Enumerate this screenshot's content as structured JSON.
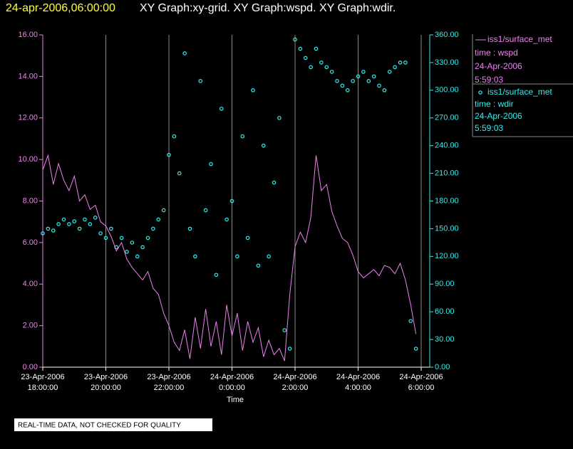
{
  "chart_data": {
    "type": "scatter",
    "title_time": "24-apr-2006,06:00:00",
    "title": "XY Graph:xy-grid.  XY Graph:wspd.  XY Graph:wdir.",
    "xlabel": "Time",
    "footer": "REAL-TIME DATA, NOT CHECKED FOR QUALITY",
    "grid": true,
    "xlim": [
      "2006-04-23T18:00:00",
      "2006-04-24T06:00:00"
    ],
    "xticks": [
      {
        "value": "2006-04-23T18:00:00",
        "label": [
          "23-Apr-2006",
          "18:00:00"
        ]
      },
      {
        "value": "2006-04-23T20:00:00",
        "label": [
          "23-Apr-2006",
          "20:00:00"
        ]
      },
      {
        "value": "2006-04-23T22:00:00",
        "label": [
          "23-Apr-2006",
          "22:00:00"
        ]
      },
      {
        "value": "2006-04-24T00:00:00",
        "label": [
          "24-Apr-2006",
          "0:00:00"
        ]
      },
      {
        "value": "2006-04-24T02:00:00",
        "label": [
          "24-Apr-2006",
          "2:00:00"
        ]
      },
      {
        "value": "2006-04-24T04:00:00",
        "label": [
          "24-Apr-2006",
          "4:00:00"
        ]
      },
      {
        "value": "2006-04-24T06:00:00",
        "label": [
          "24-Apr-2006",
          "6:00:00"
        ]
      }
    ],
    "ylim": [
      0,
      16
    ],
    "yticks": [
      {
        "value": 0,
        "label": "0.00"
      },
      {
        "value": 2,
        "label": "2.00"
      },
      {
        "value": 4,
        "label": "4.00"
      },
      {
        "value": 6,
        "label": "6.00"
      },
      {
        "value": 8,
        "label": "8.00"
      },
      {
        "value": 10,
        "label": "10.00"
      },
      {
        "value": 12,
        "label": "12.00"
      },
      {
        "value": 14,
        "label": "14.00"
      },
      {
        "value": 16,
        "label": "16.00"
      }
    ],
    "y2lim": [
      0,
      360
    ],
    "y2ticks": [
      {
        "value": 0,
        "label": "0.00"
      },
      {
        "value": 30,
        "label": "30.00"
      },
      {
        "value": 60,
        "label": "60.00"
      },
      {
        "value": 90,
        "label": "90.00"
      },
      {
        "value": 120,
        "label": "120.00"
      },
      {
        "value": 150,
        "label": "150.00"
      },
      {
        "value": 180,
        "label": "180.00"
      },
      {
        "value": 210,
        "label": "210.00"
      },
      {
        "value": 240,
        "label": "240.00"
      },
      {
        "value": 270,
        "label": "270.00"
      },
      {
        "value": 300,
        "label": "300.00"
      },
      {
        "value": 330,
        "label": "330.00"
      },
      {
        "value": 360,
        "label": "360.00"
      }
    ],
    "x": [
      "2006-04-23T18:00:00",
      "2006-04-23T18:10:00",
      "2006-04-23T18:20:00",
      "2006-04-23T18:30:00",
      "2006-04-23T18:40:00",
      "2006-04-23T18:50:00",
      "2006-04-23T19:00:00",
      "2006-04-23T19:10:00",
      "2006-04-23T19:20:00",
      "2006-04-23T19:30:00",
      "2006-04-23T19:40:00",
      "2006-04-23T19:50:00",
      "2006-04-23T20:00:00",
      "2006-04-23T20:10:00",
      "2006-04-23T20:20:00",
      "2006-04-23T20:30:00",
      "2006-04-23T20:40:00",
      "2006-04-23T20:50:00",
      "2006-04-23T21:00:00",
      "2006-04-23T21:10:00",
      "2006-04-23T21:20:00",
      "2006-04-23T21:30:00",
      "2006-04-23T21:40:00",
      "2006-04-23T21:50:00",
      "2006-04-23T22:00:00",
      "2006-04-23T22:10:00",
      "2006-04-23T22:20:00",
      "2006-04-23T22:30:00",
      "2006-04-23T22:40:00",
      "2006-04-23T22:50:00",
      "2006-04-23T23:00:00",
      "2006-04-23T23:10:00",
      "2006-04-23T23:20:00",
      "2006-04-23T23:30:00",
      "2006-04-23T23:40:00",
      "2006-04-23T23:50:00",
      "2006-04-24T00:00:00",
      "2006-04-24T00:10:00",
      "2006-04-24T00:20:00",
      "2006-04-24T00:30:00",
      "2006-04-24T00:40:00",
      "2006-04-24T00:50:00",
      "2006-04-24T01:00:00",
      "2006-04-24T01:10:00",
      "2006-04-24T01:20:00",
      "2006-04-24T01:30:00",
      "2006-04-24T01:40:00",
      "2006-04-24T01:50:00",
      "2006-04-24T02:00:00",
      "2006-04-24T02:10:00",
      "2006-04-24T02:20:00",
      "2006-04-24T02:30:00",
      "2006-04-24T02:40:00",
      "2006-04-24T02:50:00",
      "2006-04-24T03:00:00",
      "2006-04-24T03:10:00",
      "2006-04-24T03:20:00",
      "2006-04-24T03:30:00",
      "2006-04-24T03:40:00",
      "2006-04-24T03:50:00",
      "2006-04-24T04:00:00",
      "2006-04-24T04:10:00",
      "2006-04-24T04:20:00",
      "2006-04-24T04:30:00",
      "2006-04-24T04:40:00",
      "2006-04-24T04:50:00",
      "2006-04-24T05:00:00",
      "2006-04-24T05:10:00",
      "2006-04-24T05:20:00",
      "2006-04-24T05:30:00",
      "2006-04-24T05:40:00",
      "2006-04-24T05:50:00"
    ],
    "series": [
      {
        "name": "iss1/surface_met",
        "legend_lines": [
          "time : wspd",
          "24-Apr-2006",
          "5:59:03"
        ],
        "color": "#ee82ee",
        "kind": "line",
        "values": [
          9.5,
          10.2,
          8.8,
          9.8,
          9.0,
          8.5,
          9.2,
          8.0,
          8.3,
          7.6,
          7.8,
          7.0,
          6.8,
          6.3,
          5.6,
          6.0,
          5.2,
          4.8,
          4.5,
          4.2,
          4.6,
          3.8,
          3.5,
          2.6,
          2.0,
          1.2,
          0.8,
          1.8,
          0.4,
          2.4,
          0.9,
          2.8,
          1.0,
          2.2,
          0.6,
          3.0,
          1.5,
          2.6,
          0.8,
          2.2,
          1.2,
          1.9,
          0.5,
          1.3,
          0.6,
          0.9,
          0.3,
          3.5,
          5.8,
          6.5,
          6.0,
          7.2,
          10.2,
          8.5,
          8.8,
          7.5,
          6.8,
          6.2,
          6.0,
          5.4,
          4.6,
          4.3,
          4.5,
          4.7,
          4.4,
          4.9,
          4.8,
          4.5,
          5.0,
          4.2,
          3.0,
          1.6
        ]
      },
      {
        "name": "iss1/surface_met",
        "legend_lines": [
          "time : wdir",
          "24-Apr-2006",
          "5:59:03"
        ],
        "color": "#33eeee",
        "kind": "points",
        "axis": "y2",
        "values": [
          145,
          150,
          148,
          155,
          160,
          155,
          158,
          150,
          160,
          155,
          162,
          145,
          140,
          150,
          130,
          140,
          125,
          135,
          120,
          130,
          140,
          150,
          160,
          170,
          230,
          250,
          210,
          340,
          150,
          120,
          310,
          170,
          220,
          100,
          280,
          160,
          180,
          120,
          250,
          140,
          300,
          110,
          240,
          120,
          200,
          270,
          40,
          20,
          355,
          345,
          335,
          325,
          345,
          330,
          325,
          320,
          310,
          305,
          300,
          310,
          315,
          320,
          310,
          315,
          305,
          300,
          320,
          325,
          330,
          330,
          50,
          20
        ]
      }
    ]
  }
}
